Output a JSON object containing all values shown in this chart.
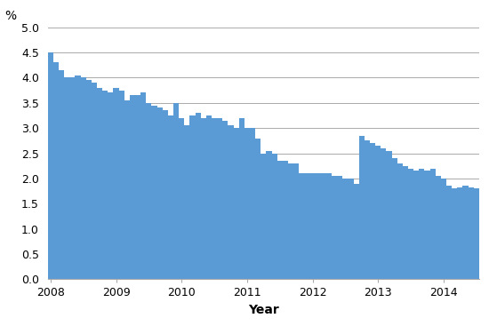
{
  "values": [
    4.5,
    4.3,
    4.15,
    4.0,
    4.0,
    4.05,
    4.0,
    3.95,
    3.9,
    3.8,
    3.75,
    3.7,
    3.8,
    3.75,
    3.55,
    3.65,
    3.65,
    3.7,
    3.5,
    3.45,
    3.4,
    3.35,
    3.25,
    3.5,
    3.2,
    3.05,
    3.25,
    3.3,
    3.2,
    3.25,
    3.2,
    3.2,
    3.15,
    3.05,
    3.0,
    3.2,
    3.0,
    3.0,
    2.8,
    2.5,
    2.55,
    2.5,
    2.35,
    2.35,
    2.3,
    2.3,
    2.1,
    2.1,
    2.1,
    2.1,
    2.1,
    2.1,
    2.05,
    2.05,
    2.0,
    2.0,
    1.9,
    2.85,
    2.75,
    2.7,
    2.65,
    2.6,
    2.55,
    2.4,
    2.3,
    2.25,
    2.2,
    2.15,
    2.2,
    2.15,
    2.2,
    2.05,
    2.0,
    1.85,
    1.8,
    1.82,
    1.85,
    1.82,
    1.8
  ],
  "bar_color": "#5b9bd5",
  "ylim": [
    0.0,
    5.0
  ],
  "yticks": [
    0.0,
    0.5,
    1.0,
    1.5,
    2.0,
    2.5,
    3.0,
    3.5,
    4.0,
    4.5,
    5.0
  ],
  "xlabel": "Year",
  "ylabel": "%",
  "grid_color": "#aaaaaa",
  "background_color": "#ffffff",
  "ylabel_fontsize": 10,
  "xlabel_fontsize": 10,
  "tick_fontsize": 9
}
